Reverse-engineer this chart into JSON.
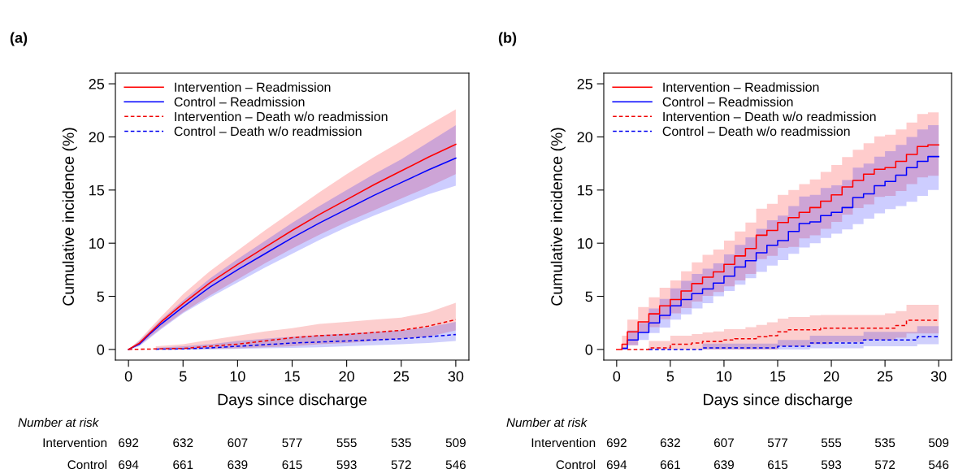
{
  "chart_data": [
    {
      "type": "line",
      "title": "(a)",
      "xlabel": "Days since discharge",
      "ylabel": "Cumulative incidence (%)",
      "xlim": [
        -1.2,
        31.2
      ],
      "ylim": [
        -1,
        26
      ],
      "xticks": [
        0,
        5,
        10,
        15,
        20,
        25,
        30
      ],
      "yticks": [
        0,
        5,
        10,
        15,
        20,
        25
      ],
      "grid": false,
      "legend": "top left",
      "annotations": [
        "Number at risk",
        "Intervention",
        "692",
        "632",
        "607",
        "577",
        "555",
        "535",
        "509",
        "Control",
        "694",
        "661",
        "639",
        "615",
        "593",
        "572",
        "546"
      ],
      "series": [
        {
          "name": "Intervention – Readmission",
          "color": "#ff0000",
          "line_style": "solid",
          "x": [
            0,
            1,
            2,
            3,
            5,
            7.5,
            10,
            12.5,
            15,
            17.5,
            20,
            22.5,
            25,
            27.5,
            30
          ],
          "values": [
            0,
            0.6,
            1.6,
            2.6,
            4.3,
            6.3,
            8.0,
            9.6,
            11.2,
            12.7,
            14.1,
            15.5,
            16.8,
            18.1,
            19.3
          ],
          "lower": [
            0,
            0.4,
            1.2,
            2.0,
            3.5,
            5.1,
            6.6,
            8.1,
            9.5,
            10.8,
            12.0,
            13.1,
            14.2,
            15.3,
            16.5
          ],
          "upper": [
            0,
            0.9,
            2.0,
            3.1,
            5.2,
            7.4,
            9.3,
            11.2,
            13.0,
            14.8,
            16.5,
            18.1,
            19.6,
            21.1,
            22.6
          ]
        },
        {
          "name": "Control – Readmission",
          "color": "#0000ff",
          "line_style": "solid",
          "x": [
            0,
            1,
            2,
            3,
            5,
            7.5,
            10,
            12.5,
            15,
            17.5,
            20,
            22.5,
            25,
            27.5,
            30
          ],
          "values": [
            0,
            0.5,
            1.5,
            2.4,
            4.0,
            5.9,
            7.5,
            9.0,
            10.5,
            11.9,
            13.2,
            14.5,
            15.7,
            16.9,
            18.0
          ],
          "lower": [
            0,
            0.3,
            1.1,
            1.9,
            3.4,
            4.9,
            6.3,
            7.7,
            9.0,
            10.3,
            11.5,
            12.6,
            13.6,
            14.6,
            15.4
          ],
          "upper": [
            0,
            0.8,
            1.8,
            2.8,
            4.6,
            6.7,
            8.5,
            10.2,
            11.9,
            13.5,
            15.0,
            16.5,
            17.9,
            19.5,
            21.1
          ]
        },
        {
          "name": "Intervention – Death w/o readmission",
          "color": "#f00000",
          "line_style": "dashed",
          "x": [
            0,
            2.5,
            5,
            7.5,
            10,
            12.5,
            15,
            17.5,
            20,
            22.5,
            25,
            27.5,
            30
          ],
          "values": [
            0,
            0.05,
            0.1,
            0.3,
            0.5,
            0.8,
            1.1,
            1.3,
            1.4,
            1.6,
            1.8,
            2.2,
            2.8
          ],
          "lower": [
            null,
            0,
            0,
            0.05,
            0.1,
            0.2,
            0.3,
            0.5,
            0.6,
            0.8,
            1.0,
            1.2,
            1.8
          ],
          "upper": [
            null,
            0.3,
            0.5,
            0.9,
            1.3,
            1.7,
            2.0,
            2.4,
            2.6,
            2.8,
            3.0,
            3.5,
            4.4
          ]
        },
        {
          "name": "Control – Death w/o readmission",
          "color": "#0000f0",
          "line_style": "dashed",
          "x": [
            2.5,
            5,
            7.5,
            10,
            12.5,
            15,
            17.5,
            20,
            22.5,
            25,
            27.5,
            30
          ],
          "values": [
            0.02,
            0.05,
            0.15,
            0.3,
            0.45,
            0.6,
            0.7,
            0.8,
            0.9,
            1.0,
            1.2,
            1.4
          ],
          "lower": [
            0,
            0,
            0,
            0.05,
            0.1,
            0.15,
            0.2,
            0.3,
            0.4,
            0.5,
            0.6,
            0.8
          ],
          "upper": [
            0.15,
            0.3,
            0.5,
            0.8,
            1.0,
            1.2,
            1.35,
            1.5,
            1.65,
            1.8,
            2.1,
            2.6
          ]
        }
      ]
    },
    {
      "type": "step",
      "title": "(b)",
      "xlabel": "Days since discharge",
      "ylabel": "Cumulative incidence (%)",
      "xlim": [
        -1.2,
        31.2
      ],
      "ylim": [
        -1,
        26
      ],
      "xticks": [
        0,
        5,
        10,
        15,
        20,
        25,
        30
      ],
      "yticks": [
        0,
        5,
        10,
        15,
        20,
        25
      ],
      "grid": false,
      "legend": "top left",
      "annotations": [
        "Number at risk",
        "Intervention",
        "692",
        "632",
        "607",
        "577",
        "555",
        "535",
        "509",
        "Control",
        "694",
        "661",
        "639",
        "615",
        "593",
        "572",
        "546"
      ],
      "series": [
        {
          "name": "Intervention – Readmission",
          "color": "#ff0000",
          "line_style": "solid",
          "x": [
            0,
            0.5,
            1,
            2,
            3,
            4,
            5,
            6,
            7,
            8,
            9,
            10,
            11,
            12,
            13,
            14,
            15,
            16,
            17,
            18,
            19,
            20,
            21,
            22,
            23,
            24,
            25,
            26,
            27,
            28,
            29,
            30
          ],
          "values": [
            0,
            0.5,
            1.65,
            2.6,
            3.35,
            4.1,
            4.7,
            5.5,
            6.2,
            6.8,
            7.3,
            8.0,
            8.8,
            9.5,
            10.75,
            11.2,
            11.95,
            12.4,
            12.9,
            13.35,
            13.95,
            14.55,
            15.3,
            15.9,
            16.5,
            16.95,
            17.1,
            17.7,
            18.35,
            19.1,
            19.25,
            19.25
          ],
          "lower": [
            0,
            0,
            0.4,
            1.6,
            2.1,
            2.85,
            3.4,
            3.9,
            4.5,
            5.05,
            5.4,
            5.95,
            6.5,
            7.1,
            8.5,
            8.8,
            9.55,
            9.65,
            10.45,
            10.75,
            11.35,
            12.0,
            12.7,
            13.3,
            13.65,
            14.35,
            14.45,
            14.9,
            15.55,
            16.2,
            16.35,
            16.35
          ],
          "upper": [
            0,
            1.3,
            2.8,
            4.0,
            4.9,
            5.8,
            6.5,
            7.35,
            8.2,
            8.9,
            9.4,
            10.25,
            11.1,
            11.95,
            13.25,
            13.7,
            14.55,
            15.0,
            15.55,
            16.0,
            16.7,
            17.35,
            18.1,
            18.8,
            19.4,
            20.05,
            20.2,
            20.7,
            21.35,
            22.15,
            22.3,
            22.3
          ]
        },
        {
          "name": "Control – Readmission",
          "color": "#0000ff",
          "line_style": "solid",
          "x": [
            0,
            0.5,
            1,
            2,
            3,
            4,
            5,
            6,
            7,
            8,
            9,
            10,
            11,
            12,
            13,
            14,
            15,
            16,
            17,
            18,
            19,
            20,
            21,
            22,
            23,
            24,
            25,
            26,
            27,
            28,
            29,
            30
          ],
          "values": [
            null,
            0.1,
            0.9,
            1.6,
            2.5,
            3.2,
            4.1,
            4.7,
            5.25,
            5.7,
            6.25,
            6.9,
            7.75,
            8.35,
            9.1,
            9.8,
            10.25,
            11.1,
            11.85,
            12.0,
            12.6,
            12.9,
            13.35,
            14.3,
            14.65,
            15.4,
            15.8,
            16.4,
            17.1,
            17.7,
            18.15,
            18.15
          ],
          "lower": [
            0,
            0,
            0.4,
            0.9,
            1.55,
            2.05,
            2.8,
            3.3,
            3.85,
            4.35,
            5.0,
            5.5,
            6.1,
            6.7,
            7.3,
            7.9,
            8.4,
            9.0,
            9.6,
            10.0,
            10.5,
            10.9,
            11.3,
            11.8,
            12.3,
            12.8,
            13.2,
            13.5,
            13.9,
            14.45,
            15.0,
            15.4
          ],
          "upper": [
            0,
            0.2,
            1.8,
            2.5,
            3.85,
            4.75,
            5.75,
            6.45,
            7.1,
            7.6,
            8.1,
            8.95,
            9.85,
            10.55,
            11.35,
            12.15,
            12.6,
            13.5,
            14.4,
            14.55,
            15.2,
            15.45,
            15.95,
            17.1,
            17.5,
            18.15,
            18.65,
            19.25,
            20.0,
            20.7,
            21.1,
            21.1
          ]
        },
        {
          "name": "Intervention – Death w/o readmission",
          "color": "#f00000",
          "line_style": "dashed",
          "x": [
            1,
            2,
            3,
            4,
            5,
            6,
            7,
            8,
            9,
            10,
            11,
            12,
            13,
            14,
            15,
            16,
            17,
            18,
            19,
            20,
            21,
            22,
            23,
            24,
            25,
            26,
            27,
            28,
            29,
            30
          ],
          "values": [
            0,
            0,
            0.15,
            0.15,
            0.5,
            0.5,
            0.6,
            0.75,
            0.75,
            0.9,
            1.0,
            1.0,
            1.2,
            1.3,
            1.65,
            1.85,
            1.85,
            1.85,
            2.0,
            2.0,
            2.0,
            2.0,
            2.0,
            2.0,
            2.0,
            2.25,
            2.75,
            2.75,
            2.75,
            2.75
          ],
          "lower": [
            null,
            null,
            0,
            0,
            0,
            0,
            0,
            0,
            0,
            0,
            0,
            0,
            0,
            0,
            0.3,
            0.3,
            0.3,
            0.5,
            0.5,
            0.7,
            0.7,
            0.7,
            0.9,
            0.9,
            0.9,
            1.1,
            1.5,
            1.5,
            1.5,
            1.5
          ],
          "upper": [
            null,
            null,
            0.8,
            0.8,
            1.3,
            1.3,
            1.45,
            1.6,
            1.7,
            1.9,
            1.9,
            2.1,
            2.3,
            2.55,
            2.9,
            3.05,
            3.05,
            3.2,
            3.25,
            3.25,
            3.25,
            3.25,
            3.25,
            3.25,
            3.4,
            3.6,
            4.2,
            4.2,
            4.2,
            4.2
          ]
        },
        {
          "name": "Control – Death w/o readmission",
          "color": "#0000f0",
          "line_style": "dashed",
          "x": [
            3,
            4,
            5,
            6,
            7,
            8,
            9,
            10,
            11,
            12,
            13,
            14,
            15,
            16,
            17,
            18,
            19,
            20,
            21,
            22,
            23,
            24,
            25,
            26,
            27,
            28,
            29,
            30
          ],
          "values": [
            0,
            0,
            0,
            0,
            0,
            0.15,
            0.15,
            0.15,
            0.15,
            0.15,
            0.15,
            0.15,
            0.3,
            0.3,
            0.3,
            0.6,
            0.6,
            0.6,
            0.6,
            0.6,
            0.9,
            0.9,
            0.9,
            0.9,
            0.9,
            1.2,
            1.2,
            1.2
          ],
          "lower": [
            null,
            null,
            null,
            null,
            null,
            0,
            0,
            0,
            0,
            0,
            0,
            0,
            0,
            0,
            0,
            0.1,
            0.1,
            0.1,
            0.1,
            0.1,
            0.3,
            0.3,
            0.3,
            0.3,
            0.3,
            0.5,
            0.5,
            0.5
          ],
          "upper": [
            null,
            null,
            null,
            null,
            null,
            0.55,
            0.55,
            0.55,
            0.55,
            0.55,
            0.55,
            0.55,
            0.9,
            0.9,
            0.9,
            1.3,
            1.3,
            1.3,
            1.3,
            1.3,
            1.65,
            1.65,
            1.65,
            1.65,
            1.65,
            2.2,
            2.2,
            2.2
          ]
        }
      ]
    }
  ]
}
